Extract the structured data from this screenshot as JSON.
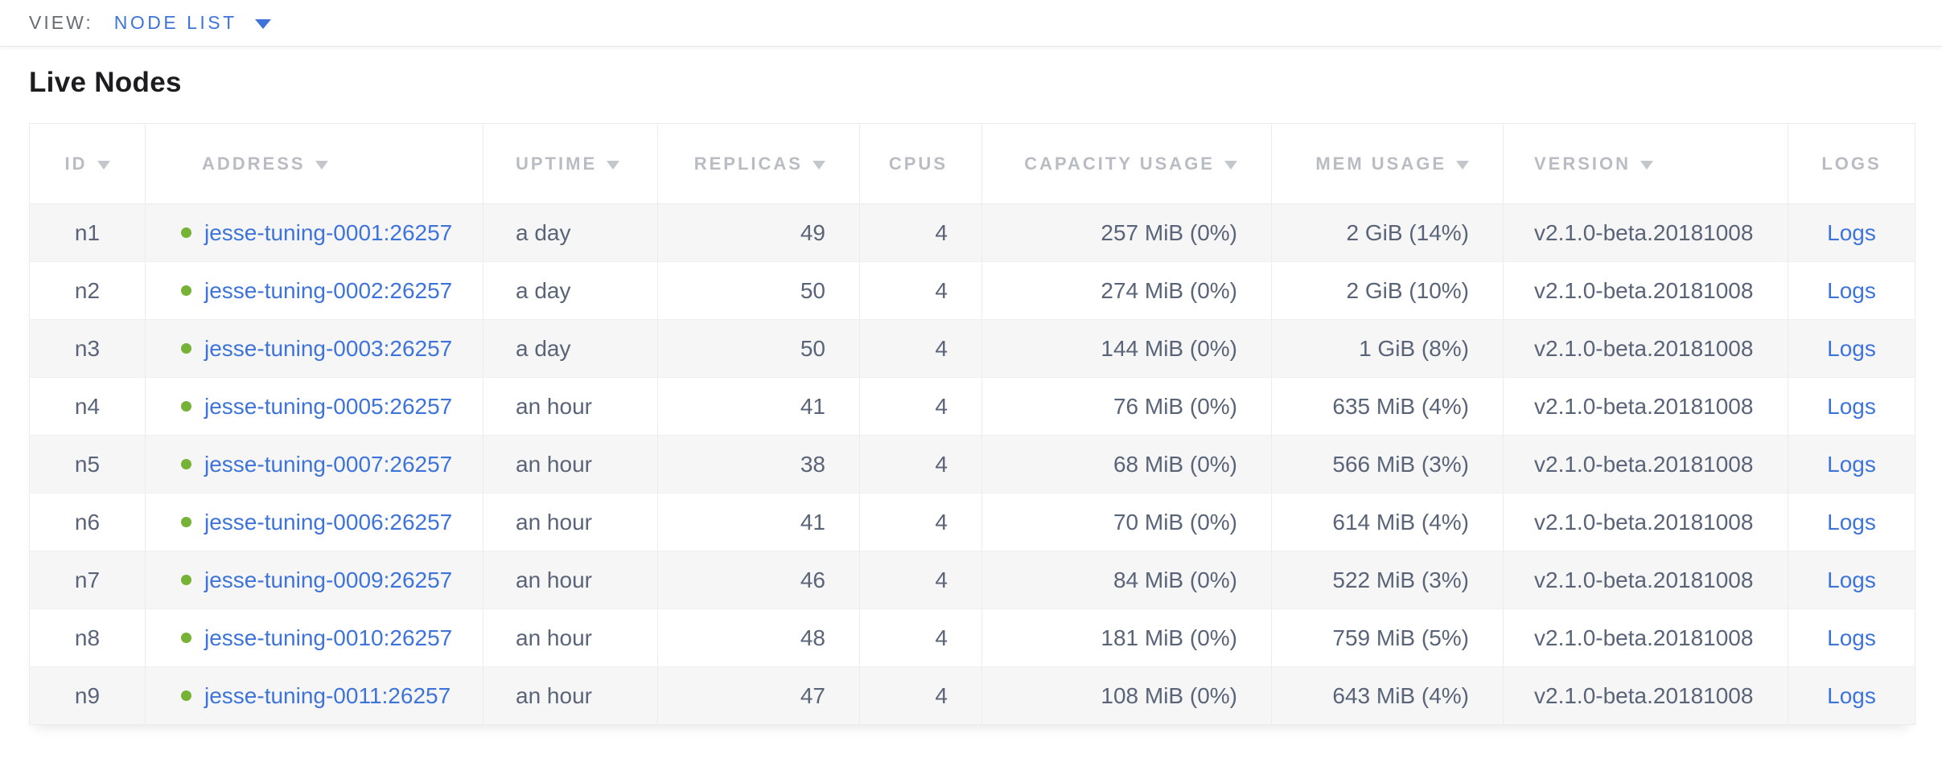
{
  "view_bar": {
    "label": "VIEW:",
    "selected_view": "NODE LIST"
  },
  "page": {
    "title": "Live Nodes"
  },
  "table": {
    "columns": [
      {
        "key": "id",
        "label": "ID",
        "sortable": true
      },
      {
        "key": "address",
        "label": "ADDRESS",
        "sortable": true
      },
      {
        "key": "uptime",
        "label": "UPTIME",
        "sortable": true
      },
      {
        "key": "replicas",
        "label": "REPLICAS",
        "sortable": true
      },
      {
        "key": "cpus",
        "label": "CPUS",
        "sortable": false
      },
      {
        "key": "capacity",
        "label": "CAPACITY USAGE",
        "sortable": true
      },
      {
        "key": "mem",
        "label": "MEM USAGE",
        "sortable": true
      },
      {
        "key": "version",
        "label": "VERSION",
        "sortable": true
      },
      {
        "key": "logs",
        "label": "LOGS",
        "sortable": false
      }
    ],
    "rows": [
      {
        "id": "n1",
        "address": "jesse-tuning-0001:26257",
        "uptime": "a day",
        "replicas": "49",
        "cpus": "4",
        "capacity": "257 MiB (0%)",
        "mem": "2 GiB (14%)",
        "version": "v2.1.0-beta.20181008",
        "logs": "Logs",
        "status": "live"
      },
      {
        "id": "n2",
        "address": "jesse-tuning-0002:26257",
        "uptime": "a day",
        "replicas": "50",
        "cpus": "4",
        "capacity": "274 MiB (0%)",
        "mem": "2 GiB (10%)",
        "version": "v2.1.0-beta.20181008",
        "logs": "Logs",
        "status": "live"
      },
      {
        "id": "n3",
        "address": "jesse-tuning-0003:26257",
        "uptime": "a day",
        "replicas": "50",
        "cpus": "4",
        "capacity": "144 MiB (0%)",
        "mem": "1 GiB (8%)",
        "version": "v2.1.0-beta.20181008",
        "logs": "Logs",
        "status": "live"
      },
      {
        "id": "n4",
        "address": "jesse-tuning-0005:26257",
        "uptime": "an hour",
        "replicas": "41",
        "cpus": "4",
        "capacity": "76 MiB (0%)",
        "mem": "635 MiB (4%)",
        "version": "v2.1.0-beta.20181008",
        "logs": "Logs",
        "status": "live"
      },
      {
        "id": "n5",
        "address": "jesse-tuning-0007:26257",
        "uptime": "an hour",
        "replicas": "38",
        "cpus": "4",
        "capacity": "68 MiB (0%)",
        "mem": "566 MiB (3%)",
        "version": "v2.1.0-beta.20181008",
        "logs": "Logs",
        "status": "live"
      },
      {
        "id": "n6",
        "address": "jesse-tuning-0006:26257",
        "uptime": "an hour",
        "replicas": "41",
        "cpus": "4",
        "capacity": "70 MiB (0%)",
        "mem": "614 MiB (4%)",
        "version": "v2.1.0-beta.20181008",
        "logs": "Logs",
        "status": "live"
      },
      {
        "id": "n7",
        "address": "jesse-tuning-0009:26257",
        "uptime": "an hour",
        "replicas": "46",
        "cpus": "4",
        "capacity": "84 MiB (0%)",
        "mem": "522 MiB (3%)",
        "version": "v2.1.0-beta.20181008",
        "logs": "Logs",
        "status": "live"
      },
      {
        "id": "n8",
        "address": "jesse-tuning-0010:26257",
        "uptime": "an hour",
        "replicas": "48",
        "cpus": "4",
        "capacity": "181 MiB (0%)",
        "mem": "759 MiB (5%)",
        "version": "v2.1.0-beta.20181008",
        "logs": "Logs",
        "status": "live"
      },
      {
        "id": "n9",
        "address": "jesse-tuning-0011:26257",
        "uptime": "an hour",
        "replicas": "47",
        "cpus": "4",
        "capacity": "108 MiB (0%)",
        "mem": "643 MiB (4%)",
        "version": "v2.1.0-beta.20181008",
        "logs": "Logs",
        "status": "live"
      }
    ]
  },
  "colors": {
    "link_blue": "#3e74da",
    "status_live_green": "#76b236",
    "header_gray": "#b9bcc2",
    "cell_text": "#5a6478"
  }
}
